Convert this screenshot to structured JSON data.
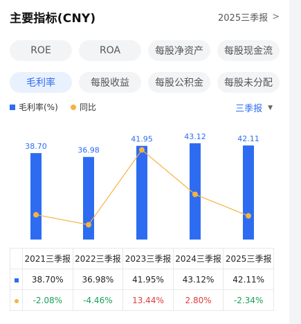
{
  "header": {
    "title": "主要指标(CNY)",
    "period": "2025三季报",
    "chevron": ">"
  },
  "chips_row1": [
    "ROE",
    "ROA",
    "每股净资产",
    "每股现金流"
  ],
  "chips_row2": [
    "毛利率",
    "每股收益",
    "每股公积金",
    "每股未分配"
  ],
  "active_chip": "毛利率",
  "legend": {
    "series1": "毛利率(%)",
    "series2": "同比"
  },
  "period_select": {
    "label": "三季报",
    "caret": "▼"
  },
  "colors": {
    "accent": "#2d6cf1",
    "line": "#f5b342",
    "positive": "#e23b3b",
    "negative": "#18a058"
  },
  "chart_data": {
    "type": "bar",
    "categories": [
      "2021三季报",
      "2022三季报",
      "2023三季报",
      "2024三季报",
      "2025三季报"
    ],
    "series": [
      {
        "name": "毛利率(%)",
        "type": "bar",
        "values": [
          38.7,
          36.98,
          41.95,
          43.12,
          42.11
        ],
        "labels": [
          "38.70",
          "36.98",
          "41.95",
          "43.12",
          "42.11"
        ]
      },
      {
        "name": "同比",
        "type": "line",
        "values": [
          -2.08,
          -4.46,
          13.44,
          2.8,
          -2.34
        ]
      }
    ]
  },
  "table": {
    "headers": [
      "2021三季报",
      "2022三季报",
      "2023三季报",
      "2024三季报",
      "2025三季报"
    ],
    "row_main": [
      "38.70%",
      "36.98%",
      "41.95%",
      "43.12%",
      "42.11%"
    ],
    "row_yoy": [
      "-2.08%",
      "-4.46%",
      "13.44%",
      "2.80%",
      "-2.34%"
    ]
  }
}
